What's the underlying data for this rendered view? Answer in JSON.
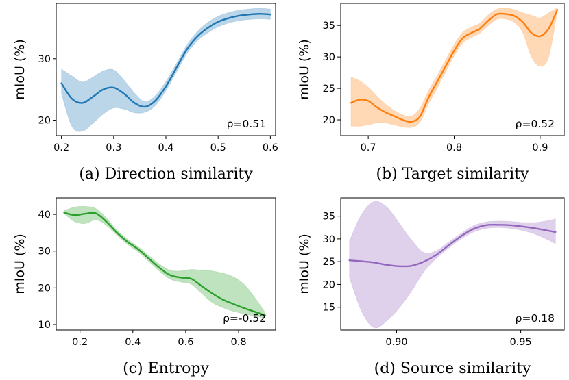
{
  "chart_data": [
    {
      "type": "line",
      "caption": "(a) Direction similarity",
      "ylabel": "mIoU (%)",
      "annotation": "ρ=0.51",
      "color": "#1f77b4",
      "xlim": [
        0.19,
        0.61
      ],
      "ylim": [
        17.5,
        39
      ],
      "xticks": [
        0.2,
        0.3,
        0.4,
        0.5,
        0.6
      ],
      "xtick_labels": [
        "0.2",
        "0.3",
        "0.4",
        "0.5",
        "0.6"
      ],
      "yticks": [
        20,
        30
      ],
      "ytick_labels": [
        "20",
        "30"
      ],
      "series": [
        {
          "name": "mean",
          "x": [
            0.2,
            0.22,
            0.24,
            0.26,
            0.28,
            0.3,
            0.32,
            0.34,
            0.36,
            0.38,
            0.4,
            0.42,
            0.44,
            0.46,
            0.48,
            0.5,
            0.52,
            0.54,
            0.56,
            0.58,
            0.6
          ],
          "y": [
            26.0,
            23.5,
            22.8,
            23.8,
            25.0,
            25.3,
            24.3,
            22.8,
            22.2,
            23.2,
            25.5,
            28.5,
            31.5,
            33.6,
            35.0,
            36.0,
            36.6,
            37.0,
            37.2,
            37.3,
            37.2
          ],
          "lower": [
            24.3,
            19.0,
            18.2,
            19.5,
            21.0,
            22.0,
            21.8,
            21.2,
            21.3,
            22.4,
            24.8,
            27.8,
            30.8,
            32.9,
            34.2,
            35.2,
            35.8,
            36.2,
            36.4,
            36.5,
            36.4
          ],
          "upper": [
            28.3,
            27.2,
            26.2,
            27.0,
            28.0,
            28.2,
            26.5,
            24.4,
            23.0,
            24.0,
            26.3,
            29.2,
            32.2,
            34.4,
            35.9,
            36.9,
            37.5,
            37.9,
            38.1,
            38.2,
            38.1
          ]
        }
      ]
    },
    {
      "type": "line",
      "caption": "(b) Target similarity",
      "ylabel": "mIoU (%)",
      "annotation": "ρ=0.52",
      "color": "#ff7f0e",
      "xlim": [
        0.668,
        0.928
      ],
      "ylim": [
        17.5,
        38.5
      ],
      "xticks": [
        0.7,
        0.8,
        0.9
      ],
      "xtick_labels": [
        "0.7",
        "0.8",
        "0.9"
      ],
      "yticks": [
        20,
        25,
        30,
        35
      ],
      "ytick_labels": [
        "20",
        "25",
        "30",
        "35"
      ],
      "series": [
        {
          "name": "mean",
          "x": [
            0.68,
            0.69,
            0.7,
            0.71,
            0.72,
            0.73,
            0.74,
            0.75,
            0.76,
            0.77,
            0.78,
            0.79,
            0.8,
            0.81,
            0.82,
            0.83,
            0.84,
            0.85,
            0.86,
            0.87,
            0.88,
            0.89,
            0.9,
            0.91,
            0.92
          ],
          "y": [
            22.7,
            23.2,
            23.0,
            22.0,
            21.2,
            20.6,
            20.0,
            19.7,
            20.5,
            23.5,
            26.0,
            28.5,
            31.0,
            33.0,
            33.8,
            34.5,
            35.8,
            36.8,
            36.8,
            36.5,
            35.5,
            33.8,
            33.3,
            34.5,
            37.5
          ],
          "lower": [
            19.0,
            19.0,
            19.2,
            19.5,
            19.5,
            19.2,
            18.9,
            18.8,
            19.6,
            22.5,
            25.0,
            27.6,
            30.2,
            32.2,
            33.1,
            33.8,
            35.0,
            36.0,
            36.0,
            35.5,
            33.8,
            30.0,
            28.5,
            30.0,
            37.2
          ],
          "upper": [
            26.8,
            26.2,
            25.2,
            23.8,
            22.5,
            21.5,
            20.8,
            20.6,
            21.8,
            24.6,
            27.0,
            29.5,
            32.0,
            33.9,
            34.7,
            35.4,
            36.7,
            37.6,
            37.8,
            37.5,
            37.0,
            36.6,
            36.2,
            37.0,
            37.8
          ]
        }
      ]
    },
    {
      "type": "line",
      "caption": "(c) Entropy",
      "ylabel": "mIoU (%)",
      "annotation": "ρ=-0.52",
      "color": "#2ca02c",
      "xlim": [
        0.11,
        0.94
      ],
      "ylim": [
        8.5,
        44.5
      ],
      "xticks": [
        0.2,
        0.4,
        0.6,
        0.8
      ],
      "xtick_labels": [
        "0.2",
        "0.4",
        "0.6",
        "0.8"
      ],
      "yticks": [
        10,
        20,
        30,
        40
      ],
      "ytick_labels": [
        "10",
        "20",
        "30",
        "40"
      ],
      "series": [
        {
          "name": "mean",
          "x": [
            0.14,
            0.18,
            0.22,
            0.26,
            0.3,
            0.34,
            0.38,
            0.42,
            0.46,
            0.5,
            0.54,
            0.58,
            0.62,
            0.66,
            0.7,
            0.74,
            0.78,
            0.82,
            0.86,
            0.9
          ],
          "y": [
            40.5,
            39.8,
            40.2,
            40.3,
            38.0,
            35.0,
            32.5,
            30.5,
            28.0,
            25.5,
            23.5,
            22.8,
            22.5,
            20.5,
            18.5,
            16.8,
            15.6,
            14.5,
            13.5,
            12.5
          ],
          "lower": [
            40.2,
            38.0,
            37.5,
            38.5,
            37.0,
            34.3,
            31.8,
            29.8,
            27.2,
            24.6,
            22.4,
            21.6,
            21.0,
            18.5,
            16.0,
            14.6,
            13.6,
            12.9,
            12.3,
            11.8
          ],
          "upper": [
            41.0,
            42.0,
            42.2,
            41.6,
            39.0,
            35.7,
            33.2,
            31.2,
            28.8,
            26.5,
            24.8,
            24.6,
            25.0,
            24.8,
            24.6,
            24.0,
            23.0,
            21.0,
            17.5,
            13.3
          ]
        }
      ]
    },
    {
      "type": "line",
      "caption": "(d) Source similarity",
      "ylabel": "mIoU (%)",
      "annotation": "ρ=0.18",
      "color": "#9467bd",
      "xlim": [
        0.8775,
        0.9675
      ],
      "ylim": [
        10,
        39
      ],
      "xticks": [
        0.9,
        0.95
      ],
      "xtick_labels": [
        "0.90",
        "0.95"
      ],
      "yticks": [
        15,
        20,
        25,
        30,
        35
      ],
      "ytick_labels": [
        "15",
        "20",
        "25",
        "30",
        "35"
      ],
      "series": [
        {
          "name": "mean",
          "x": [
            0.881,
            0.886,
            0.891,
            0.896,
            0.901,
            0.906,
            0.911,
            0.916,
            0.921,
            0.926,
            0.931,
            0.936,
            0.941,
            0.946,
            0.951,
            0.956,
            0.961,
            0.964
          ],
          "y": [
            25.3,
            25.1,
            24.8,
            24.3,
            24.0,
            24.1,
            25.0,
            26.5,
            28.6,
            30.6,
            32.2,
            33.0,
            33.1,
            33.0,
            32.7,
            32.3,
            31.8,
            31.5
          ],
          "lower": [
            21.5,
            14.0,
            10.5,
            12.0,
            14.8,
            18.5,
            22.8,
            25.7,
            28.0,
            30.0,
            31.5,
            32.3,
            32.5,
            32.3,
            31.8,
            31.0,
            29.8,
            28.9
          ],
          "upper": [
            29.5,
            35.5,
            38.2,
            37.0,
            33.5,
            29.8,
            27.0,
            27.4,
            29.3,
            31.2,
            32.9,
            33.7,
            33.9,
            33.8,
            33.6,
            33.6,
            34.0,
            34.4
          ]
        }
      ]
    }
  ]
}
